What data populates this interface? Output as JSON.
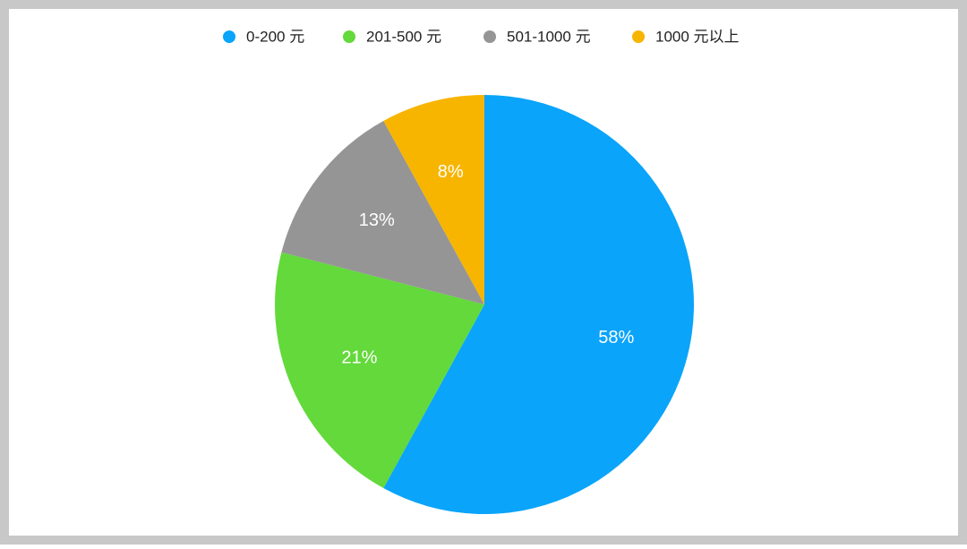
{
  "chart_data": {
    "type": "pie",
    "categories": [
      "0-200 元",
      "201-500 元",
      "501-1000 元",
      "1000 元以上"
    ],
    "values": [
      58,
      21,
      13,
      8
    ],
    "value_labels": [
      "58%",
      "21%",
      "13%",
      "8%"
    ],
    "colors": [
      "#0aa4fa",
      "#63d93b",
      "#959595",
      "#f7b500"
    ],
    "legend": "top"
  }
}
